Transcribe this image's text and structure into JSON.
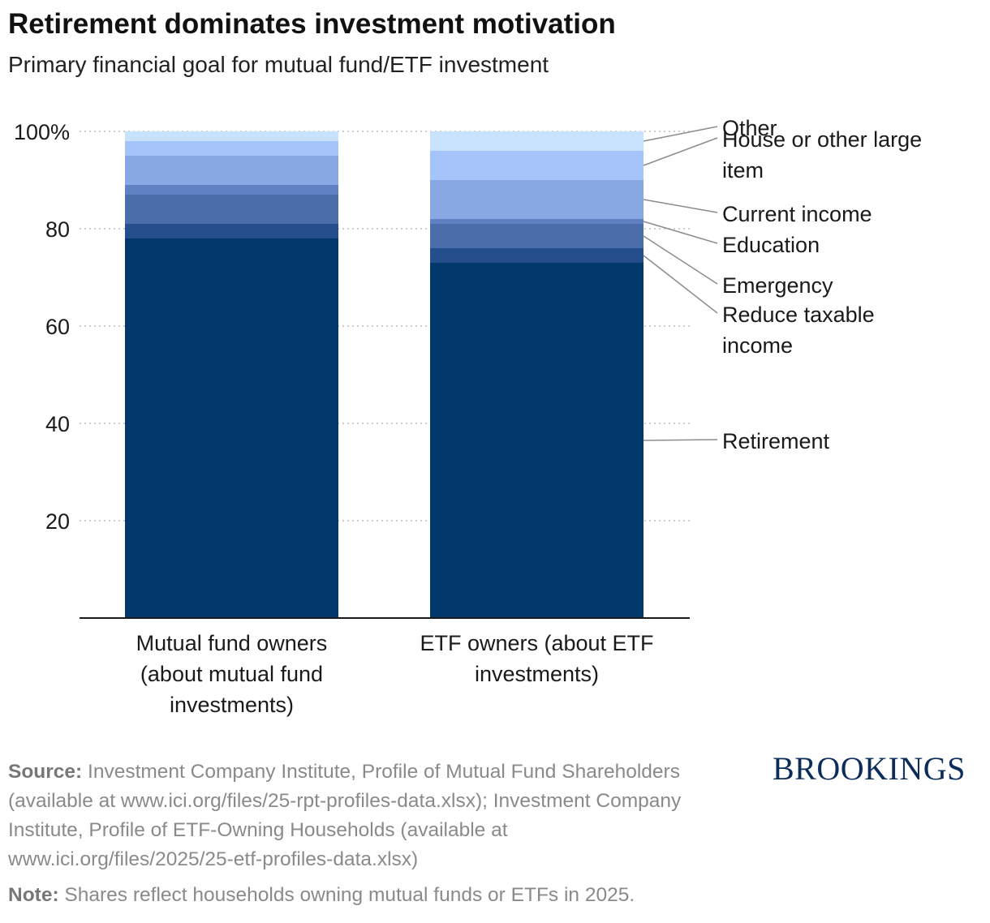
{
  "title": "Retirement dominates investment motivation",
  "subtitle": "Primary financial goal for mutual fund/ETF investment",
  "chart_data": {
    "type": "bar",
    "stacked": true,
    "categories": [
      [
        "Mutual fund owners",
        "(about mutual fund",
        "investments)"
      ],
      [
        "ETF owners (about ETF",
        "investments)"
      ]
    ],
    "series": [
      {
        "name": "Retirement",
        "label_lines": [
          "Retirement"
        ],
        "values": [
          78,
          73
        ],
        "color": "#01396b"
      },
      {
        "name": "Reduce taxable income",
        "label_lines": [
          "Reduce taxable",
          "income"
        ],
        "values": [
          3,
          3
        ],
        "color": "#254f8c"
      },
      {
        "name": "Emergency",
        "label_lines": [
          "Emergency"
        ],
        "values": [
          6,
          5
        ],
        "color": "#4a6ea9"
      },
      {
        "name": "Education",
        "label_lines": [
          "Education"
        ],
        "values": [
          2,
          1
        ],
        "color": "#5f80c2"
      },
      {
        "name": "Current income",
        "label_lines": [
          "Current income"
        ],
        "values": [
          6,
          8
        ],
        "color": "#88a8e4"
      },
      {
        "name": "House or other large item",
        "label_lines": [
          "House or other large",
          "item"
        ],
        "values": [
          3,
          6
        ],
        "color": "#a4c4fa"
      },
      {
        "name": "Other",
        "label_lines": [
          "Other"
        ],
        "values": [
          2,
          4
        ],
        "color": "#c8e2fd"
      }
    ],
    "yticks": [
      20,
      40,
      60,
      80,
      100
    ],
    "ytick_labels": [
      "20",
      "40",
      "60",
      "80",
      "100%"
    ],
    "ylim": [
      0,
      100
    ],
    "grid": true,
    "legend": "right (direct labels)"
  },
  "footer": {
    "source_label": "Source:",
    "source_text": "Investment Company Institute, Profile of Mutual Fund Shareholders (available at www.ici.org/files/25-rpt-profiles-data.xlsx); Investment Company Institute, Profile of ETF-Owning Households (available at www.ici.org/files/2025/25-etf-profiles-data.xlsx)",
    "note_label": "Note:",
    "note_text": "Shares reflect households owning mutual funds or ETFs in 2025."
  },
  "logo": "BROOKINGS"
}
